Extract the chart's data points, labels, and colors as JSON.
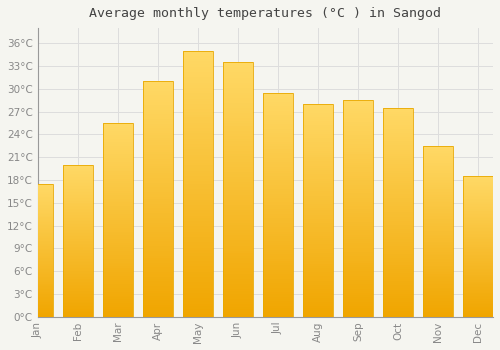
{
  "title": "Average monthly temperatures (°C ) in Sangod",
  "months": [
    "Jan",
    "Feb",
    "Mar",
    "Apr",
    "May",
    "Jun",
    "Jul",
    "Aug",
    "Sep",
    "Oct",
    "Nov",
    "Dec"
  ],
  "values": [
    17.5,
    20.0,
    25.5,
    31.0,
    35.0,
    33.5,
    29.5,
    28.0,
    28.5,
    27.5,
    22.5,
    18.5
  ],
  "bar_color_top": "#FFD966",
  "bar_color_bottom": "#F0A500",
  "bar_edge_color": "#E8A800",
  "background_color": "#F5F5F0",
  "plot_bg_color": "#F5F5F0",
  "grid_color": "#DDDDDD",
  "tick_label_color": "#888888",
  "title_color": "#444444",
  "ylim": [
    0,
    38
  ],
  "yticks": [
    0,
    3,
    6,
    9,
    12,
    15,
    18,
    21,
    24,
    27,
    30,
    33,
    36
  ],
  "title_fontsize": 9.5,
  "bar_width": 0.75
}
